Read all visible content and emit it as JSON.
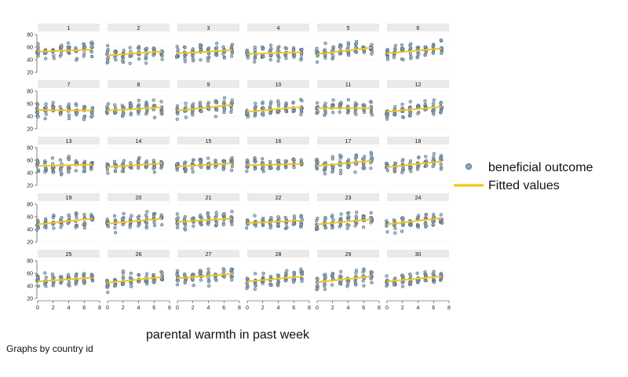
{
  "chart_data": {
    "type": "scatter",
    "by_variable_note": "Graphs by country id",
    "xlabel": "parental warmth in past week",
    "ylabel": "",
    "xlim": [
      0,
      8
    ],
    "ylim": [
      20,
      80
    ],
    "x_ticks": [
      "0",
      "2",
      "4",
      "6",
      "8"
    ],
    "y_ticks": [
      "20",
      "40",
      "60",
      "80"
    ],
    "legend": [
      {
        "label": "beneficial outcome",
        "marker": "circle",
        "color": "#8fa6b8"
      },
      {
        "label": "Fitted values",
        "marker": "line",
        "color": "#f5c518"
      }
    ],
    "x_values": [
      0,
      1,
      2,
      3,
      4,
      5,
      6,
      7
    ],
    "panels": [
      {
        "id": "1",
        "fit": [
          53,
          56
        ],
        "spread": 10
      },
      {
        "id": "2",
        "fit": [
          47,
          53
        ],
        "spread": 10
      },
      {
        "id": "3",
        "fit": [
          50,
          55
        ],
        "spread": 10
      },
      {
        "id": "4",
        "fit": [
          49,
          52
        ],
        "spread": 10
      },
      {
        "id": "5",
        "fit": [
          49,
          59
        ],
        "spread": 10
      },
      {
        "id": "6",
        "fit": [
          50,
          58
        ],
        "spread": 10
      },
      {
        "id": "7",
        "fit": [
          50,
          49
        ],
        "spread": 9
      },
      {
        "id": "8",
        "fit": [
          49,
          54
        ],
        "spread": 10
      },
      {
        "id": "9",
        "fit": [
          49,
          58
        ],
        "spread": 10
      },
      {
        "id": "10",
        "fit": [
          47,
          55
        ],
        "spread": 10
      },
      {
        "id": "11",
        "fit": [
          53,
          53
        ],
        "spread": 9
      },
      {
        "id": "12",
        "fit": [
          47,
          55
        ],
        "spread": 10
      },
      {
        "id": "13",
        "fit": [
          51,
          53
        ],
        "spread": 10
      },
      {
        "id": "14",
        "fit": [
          49,
          55
        ],
        "spread": 9
      },
      {
        "id": "15",
        "fit": [
          50,
          55
        ],
        "spread": 9
      },
      {
        "id": "16",
        "fit": [
          52,
          54
        ],
        "spread": 9
      },
      {
        "id": "17",
        "fit": [
          51,
          59
        ],
        "spread": 10
      },
      {
        "id": "18",
        "fit": [
          49,
          58
        ],
        "spread": 10
      },
      {
        "id": "19",
        "fit": [
          48,
          57
        ],
        "spread": 10
      },
      {
        "id": "20",
        "fit": [
          49,
          57
        ],
        "spread": 9
      },
      {
        "id": "21",
        "fit": [
          52,
          57
        ],
        "spread": 9
      },
      {
        "id": "22",
        "fit": [
          50,
          54
        ],
        "spread": 9
      },
      {
        "id": "23",
        "fit": [
          48,
          56
        ],
        "spread": 10
      },
      {
        "id": "24",
        "fit": [
          48,
          58
        ],
        "spread": 10
      },
      {
        "id": "25",
        "fit": [
          47,
          53
        ],
        "spread": 10
      },
      {
        "id": "26",
        "fit": [
          45,
          54
        ],
        "spread": 10
      },
      {
        "id": "27",
        "fit": [
          52,
          59
        ],
        "spread": 10
      },
      {
        "id": "28",
        "fit": [
          47,
          55
        ],
        "spread": 10
      },
      {
        "id": "29",
        "fit": [
          46,
          55
        ],
        "spread": 10
      },
      {
        "id": "30",
        "fit": [
          47,
          55
        ],
        "spread": 9
      }
    ]
  }
}
